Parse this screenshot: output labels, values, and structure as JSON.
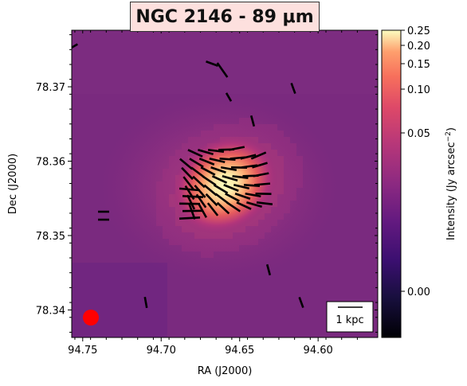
{
  "chart_data": {
    "type": "heatmap",
    "title": "NGC 2146 - 89 μm",
    "xlabel": "RA (J2000)",
    "ylabel": "Dec (J2000)",
    "x_ticks": [
      "94.75",
      "94.70",
      "94.65",
      "94.60"
    ],
    "x_tick_values": [
      94.75,
      94.7,
      94.65,
      94.6
    ],
    "y_ticks": [
      "78.34",
      "78.35",
      "78.36",
      "78.37"
    ],
    "y_tick_values": [
      78.34,
      78.35,
      78.36,
      78.37
    ],
    "xlim": [
      94.757,
      94.562
    ],
    "ylim": [
      78.3363,
      78.3776
    ],
    "colorbar": {
      "label": "Intensity (Jy arcsec$^{-2}$)",
      "label_text": "Intensity (Jy arcsec",
      "label_sup": "−2",
      "label_close": ")",
      "tick_labels": [
        "0.00",
        "0.05",
        "0.10",
        "0.15",
        "0.20",
        "0.25"
      ],
      "tick_values": [
        0.0,
        0.05,
        0.1,
        0.15,
        0.2,
        0.25
      ],
      "range": [
        -0.015,
        0.25
      ],
      "colormap": "magma"
    },
    "scalebar_label": "1 kpc",
    "beam_color": "#ff0000",
    "vector_color": "#000000",
    "emission_peak": {
      "ra": 94.657,
      "dec": 78.3575,
      "intensity": 0.25
    }
  }
}
